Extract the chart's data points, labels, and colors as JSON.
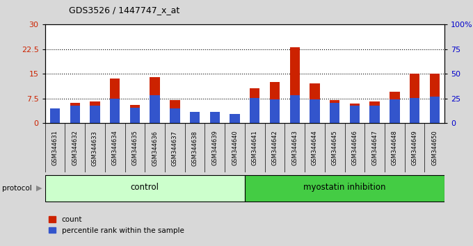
{
  "title": "GDS3526 / 1447747_x_at",
  "samples": [
    "GSM344631",
    "GSM344632",
    "GSM344633",
    "GSM344634",
    "GSM344635",
    "GSM344636",
    "GSM344637",
    "GSM344638",
    "GSM344639",
    "GSM344640",
    "GSM344641",
    "GSM344642",
    "GSM344643",
    "GSM344644",
    "GSM344645",
    "GSM344646",
    "GSM344647",
    "GSM344648",
    "GSM344649",
    "GSM344650"
  ],
  "count_values": [
    3.5,
    6.2,
    6.5,
    13.5,
    5.5,
    14.0,
    7.0,
    3.0,
    3.0,
    2.5,
    10.5,
    12.5,
    23.0,
    12.0,
    7.0,
    6.0,
    6.5,
    9.5,
    15.0,
    15.0
  ],
  "percentile_values": [
    14.5,
    17.5,
    17.5,
    25.0,
    15.5,
    28.5,
    14.5,
    11.0,
    11.0,
    9.5,
    25.5,
    24.0,
    28.5,
    24.0,
    20.5,
    17.5,
    17.5,
    24.0,
    25.5,
    27.0
  ],
  "bar_color_red": "#cc2200",
  "bar_color_blue": "#3355cc",
  "control_label": "control",
  "myostatin_label": "myostatin inhibition",
  "protocol_label": "protocol",
  "ylim_left": [
    0,
    30
  ],
  "ylim_right": [
    0,
    100
  ],
  "yticks_left": [
    0,
    7.5,
    15,
    22.5,
    30
  ],
  "yticks_right": [
    0,
    25,
    50,
    75,
    100
  ],
  "ytick_labels_left": [
    "0",
    "7.5",
    "15",
    "22.5",
    "30"
  ],
  "ytick_labels_right": [
    "0",
    "25",
    "50",
    "75",
    "100%"
  ],
  "bg_color": "#d8d8d8",
  "tick_area_bg": "#c8c8c8",
  "plot_bg": "#ffffff",
  "control_bg": "#ccffcc",
  "myostatin_bg": "#44cc44",
  "legend_count": "count",
  "legend_percentile": "percentile rank within the sample",
  "bar_width": 0.5,
  "n_control": 10,
  "n_total": 20
}
